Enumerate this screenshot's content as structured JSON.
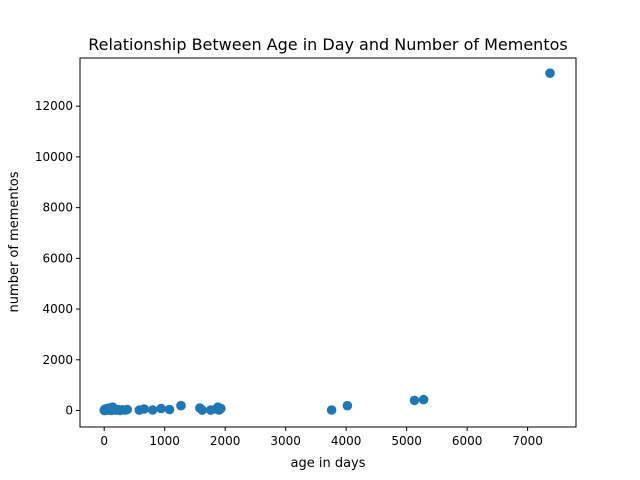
{
  "chart_data": {
    "type": "scatter",
    "title": "Relationship Between Age in Day and Number of Mementos",
    "xlabel": "age in days",
    "ylabel": "number of mementos",
    "xlim": [
      -400,
      7800
    ],
    "ylim": [
      -650,
      13900
    ],
    "x_ticks": [
      0,
      1000,
      2000,
      3000,
      4000,
      5000,
      6000,
      7000
    ],
    "y_ticks": [
      0,
      2000,
      4000,
      6000,
      8000,
      10000,
      12000
    ],
    "grid": false,
    "legend": "none",
    "point_color": "#1f77b4",
    "points": [
      {
        "x": 0,
        "y": 5
      },
      {
        "x": 5,
        "y": 20
      },
      {
        "x": 10,
        "y": 40
      },
      {
        "x": 15,
        "y": 10
      },
      {
        "x": 20,
        "y": 60
      },
      {
        "x": 30,
        "y": 15
      },
      {
        "x": 40,
        "y": 30
      },
      {
        "x": 50,
        "y": 80
      },
      {
        "x": 70,
        "y": 20
      },
      {
        "x": 90,
        "y": 100
      },
      {
        "x": 110,
        "y": 50
      },
      {
        "x": 120,
        "y": 10
      },
      {
        "x": 140,
        "y": 130
      },
      {
        "x": 160,
        "y": 60
      },
      {
        "x": 180,
        "y": 25
      },
      {
        "x": 200,
        "y": 15
      },
      {
        "x": 230,
        "y": 35
      },
      {
        "x": 260,
        "y": 10
      },
      {
        "x": 300,
        "y": 30
      },
      {
        "x": 350,
        "y": 20
      },
      {
        "x": 380,
        "y": 40
      },
      {
        "x": 580,
        "y": 15
      },
      {
        "x": 660,
        "y": 60
      },
      {
        "x": 800,
        "y": 20
      },
      {
        "x": 940,
        "y": 80
      },
      {
        "x": 1080,
        "y": 40
      },
      {
        "x": 1270,
        "y": 190
      },
      {
        "x": 1580,
        "y": 100
      },
      {
        "x": 1620,
        "y": 15
      },
      {
        "x": 1760,
        "y": 15
      },
      {
        "x": 1850,
        "y": 60
      },
      {
        "x": 1880,
        "y": 130
      },
      {
        "x": 1900,
        "y": 20
      },
      {
        "x": 1930,
        "y": 80
      },
      {
        "x": 3760,
        "y": 20
      },
      {
        "x": 4020,
        "y": 190
      },
      {
        "x": 5130,
        "y": 400
      },
      {
        "x": 5280,
        "y": 430
      },
      {
        "x": 7370,
        "y": 13300
      }
    ]
  }
}
